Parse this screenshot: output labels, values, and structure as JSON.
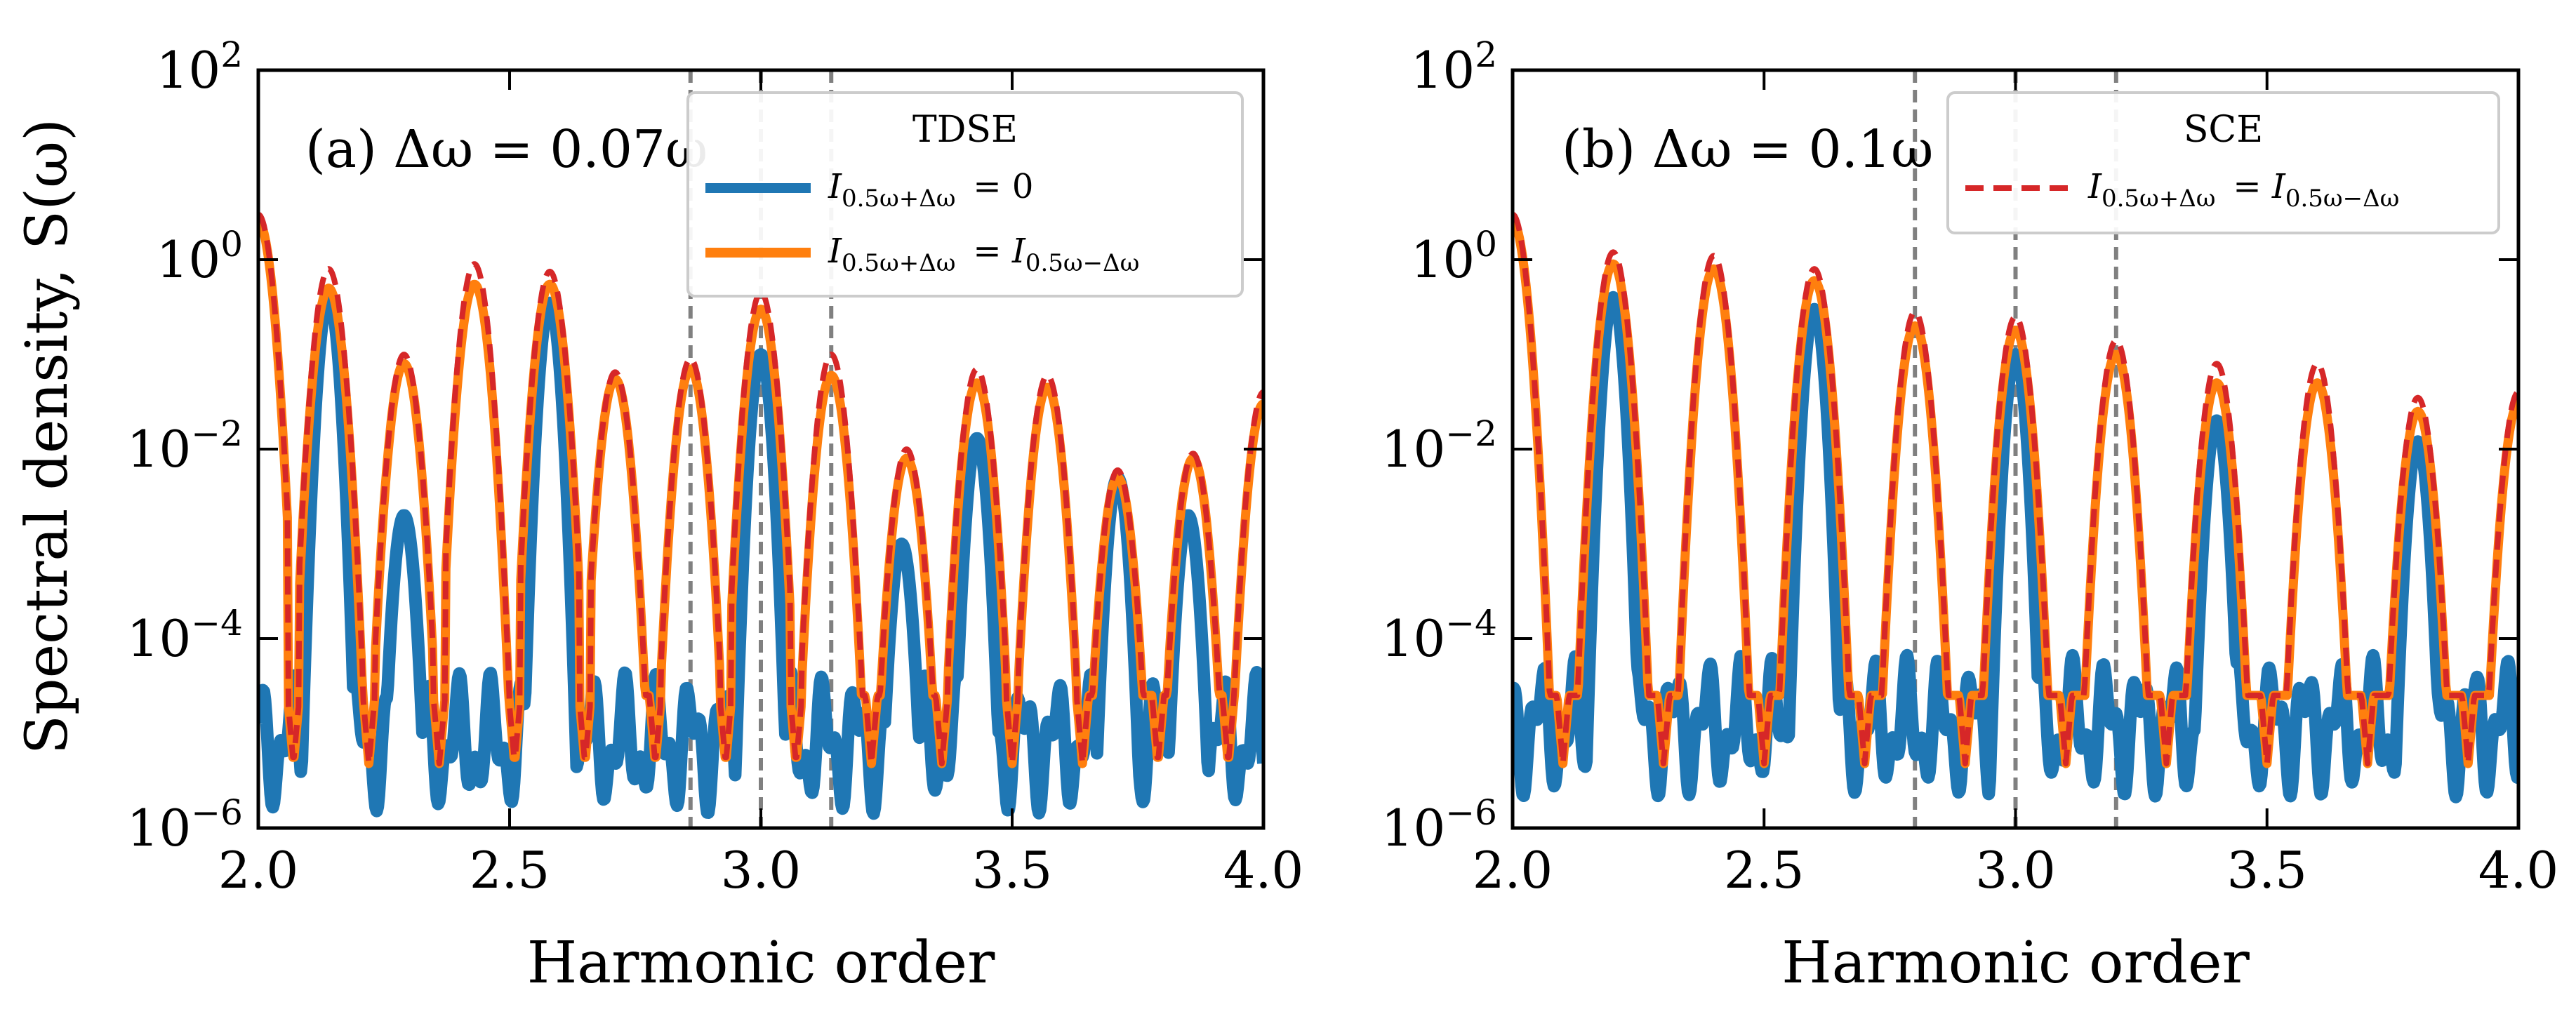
{
  "figure": {
    "ylabel": "Spectral density, S(ω)"
  },
  "chart_data": [
    {
      "type": "line",
      "panel_label": "(a) Δω = 0.07ω",
      "xlabel": "Harmonic order",
      "ylabel": "Spectral density, S(ω)",
      "xlim": [
        2.0,
        4.0
      ],
      "ylim": [
        1e-06,
        100
      ],
      "yscale": "log",
      "x_ticks": [
        "2.0",
        "2.5",
        "3.0",
        "3.5",
        "4.0"
      ],
      "y_ticks": [
        "10^2",
        "10^0",
        "10^-2",
        "10^-4",
        "10^-6"
      ],
      "vlines": [
        2.86,
        3.0,
        3.14
      ],
      "legend": {
        "title": "TDSE",
        "position": "top-right",
        "entries": [
          "I_{0.5ω+Δω} = 0",
          "I_{0.5ω+Δω} = I_{0.5ω−Δω}"
        ]
      },
      "series": [
        {
          "name": "I_{0.5ω+Δω} = 0",
          "color": "#1f77b4",
          "peaks": [
            [
              2.14,
              0.4
            ],
            [
              2.29,
              0.002
            ],
            [
              2.58,
              0.35
            ],
            [
              3.0,
              0.1
            ],
            [
              3.28,
              0.001
            ],
            [
              3.43,
              0.013
            ],
            [
              3.71,
              0.005
            ],
            [
              3.85,
              0.002
            ]
          ],
          "floor": 2e-06
        },
        {
          "name": "I_{0.5ω+Δω} = I_{0.5ω−Δω}",
          "color": "#ff7f0e",
          "peaks": [
            [
              2.0,
              2.5
            ],
            [
              2.14,
              0.5
            ],
            [
              2.29,
              0.08
            ],
            [
              2.43,
              0.55
            ],
            [
              2.58,
              0.55
            ],
            [
              2.71,
              0.055
            ],
            [
              2.86,
              0.07
            ],
            [
              3.0,
              0.3
            ],
            [
              3.14,
              0.06
            ],
            [
              3.29,
              0.008
            ],
            [
              3.43,
              0.05
            ],
            [
              3.57,
              0.045
            ],
            [
              3.71,
              0.005
            ],
            [
              3.86,
              0.008
            ],
            [
              4.0,
              0.03
            ]
          ],
          "minima": [
            2.07,
            2.22,
            2.36,
            2.51,
            2.65,
            2.79,
            2.93,
            3.07,
            3.22,
            3.36,
            3.5,
            3.64,
            3.79,
            3.93
          ]
        },
        {
          "name": "SCE",
          "color": "#d62728",
          "style": "dashed",
          "peaks": [
            [
              2.0,
              3.0
            ],
            [
              2.14,
              0.8
            ],
            [
              2.29,
              0.1
            ],
            [
              2.43,
              0.9
            ],
            [
              2.58,
              0.75
            ],
            [
              2.71,
              0.065
            ],
            [
              2.86,
              0.09
            ],
            [
              3.0,
              0.45
            ],
            [
              3.14,
              0.1
            ],
            [
              3.29,
              0.01
            ],
            [
              3.43,
              0.07
            ],
            [
              3.57,
              0.06
            ],
            [
              3.71,
              0.006
            ],
            [
              3.86,
              0.009
            ],
            [
              4.0,
              0.04
            ]
          ],
          "minima": [
            2.07,
            2.22,
            2.36,
            2.51,
            2.65,
            2.79,
            2.93,
            3.07,
            3.22,
            3.36,
            3.5,
            3.64,
            3.79,
            3.93
          ]
        }
      ]
    },
    {
      "type": "line",
      "panel_label": "(b) Δω = 0.1ω",
      "xlabel": "Harmonic order",
      "xlim": [
        2.0,
        4.0
      ],
      "ylim": [
        1e-06,
        100
      ],
      "yscale": "log",
      "x_ticks": [
        "2.0",
        "2.5",
        "3.0",
        "3.5",
        "4.0"
      ],
      "y_ticks": [
        "10^2",
        "10^0",
        "10^-2",
        "10^-4",
        "10^-6"
      ],
      "vlines": [
        2.8,
        3.0,
        3.2
      ],
      "legend": {
        "title": "SCE",
        "position": "top-right",
        "entries": [
          "I_{0.5ω+Δω} = I_{0.5ω−Δω}"
        ]
      },
      "series": [
        {
          "name": "I_{0.5ω+Δω} = 0",
          "color": "#1f77b4",
          "peaks": [
            [
              2.2,
              0.4
            ],
            [
              2.6,
              0.3
            ],
            [
              3.0,
              0.1
            ],
            [
              3.4,
              0.02
            ],
            [
              3.8,
              0.012
            ]
          ],
          "floor": 3e-06
        },
        {
          "name": "I_{0.5ω+Δω} = I_{0.5ω−Δω}",
          "color": "#ff7f0e",
          "peaks": [
            [
              2.0,
              2.5
            ],
            [
              2.2,
              0.9
            ],
            [
              2.4,
              0.8
            ],
            [
              2.6,
              0.6
            ],
            [
              2.8,
              0.2
            ],
            [
              3.0,
              0.18
            ],
            [
              3.2,
              0.1
            ],
            [
              3.4,
              0.05
            ],
            [
              3.6,
              0.05
            ],
            [
              3.8,
              0.025
            ],
            [
              4.0,
              0.03
            ]
          ],
          "minima": [
            2.1,
            2.3,
            2.5,
            2.7,
            2.9,
            3.1,
            3.3,
            3.5,
            3.7,
            3.9
          ]
        },
        {
          "name": "SCE",
          "color": "#d62728",
          "style": "dashed",
          "peaks": [
            [
              2.0,
              3.0
            ],
            [
              2.2,
              1.2
            ],
            [
              2.4,
              1.1
            ],
            [
              2.6,
              0.8
            ],
            [
              2.8,
              0.28
            ],
            [
              3.0,
              0.25
            ],
            [
              3.2,
              0.14
            ],
            [
              3.4,
              0.08
            ],
            [
              3.6,
              0.08
            ],
            [
              3.8,
              0.035
            ],
            [
              4.0,
              0.04
            ]
          ],
          "minima": [
            2.1,
            2.3,
            2.5,
            2.7,
            2.9,
            3.1,
            3.3,
            3.5,
            3.7,
            3.9
          ]
        }
      ]
    }
  ]
}
